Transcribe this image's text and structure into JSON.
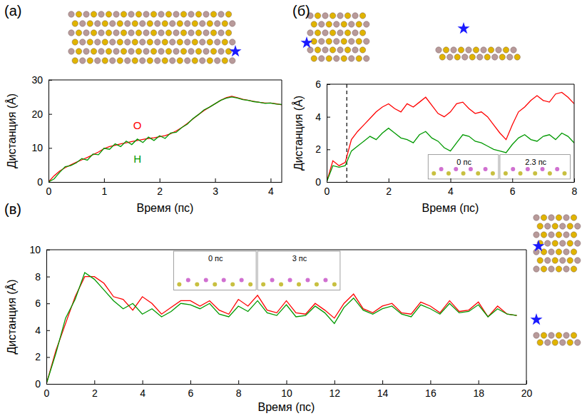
{
  "chart_data": [
    {
      "type": "line",
      "panel_label": "(а)",
      "x_label": "Время (пс)",
      "y_label": "Дистанция (Å)",
      "xlim": [
        0,
        4.2
      ],
      "xticks": [
        0,
        1,
        2,
        3,
        4
      ],
      "ylim": [
        0,
        30
      ],
      "yticks": [
        0,
        10,
        20,
        30
      ],
      "x": [
        0,
        0.1,
        0.2,
        0.3,
        0.4,
        0.5,
        0.6,
        0.7,
        0.8,
        0.9,
        1.0,
        1.1,
        1.2,
        1.3,
        1.4,
        1.5,
        1.6,
        1.7,
        1.8,
        1.9,
        2.0,
        2.1,
        2.2,
        2.3,
        2.4,
        2.5,
        2.6,
        2.7,
        2.8,
        2.9,
        3.0,
        3.1,
        3.2,
        3.3,
        3.4,
        3.5,
        3.6,
        3.7,
        3.8,
        3.9,
        4.0,
        4.1,
        4.2
      ],
      "series": [
        {
          "color": "#ff0000",
          "values": [
            0,
            1.8,
            3.2,
            4.2,
            5.0,
            5.8,
            6.5,
            7.2,
            8.0,
            8.8,
            9.8,
            10.4,
            10.8,
            11.2,
            11.5,
            11.9,
            12.2,
            12.5,
            12.8,
            13.0,
            13.3,
            13.6,
            14.2,
            15.0,
            16.0,
            17.2,
            18.5,
            19.8,
            21.0,
            22.0,
            23.0,
            24.0,
            24.8,
            25.2,
            24.8,
            24.3,
            24.0,
            23.7,
            23.4,
            23.2,
            23.2,
            23.0,
            22.7
          ]
        },
        {
          "color": "#009900",
          "values": [
            0,
            0.9,
            2.8,
            4.5,
            4.8,
            5.6,
            6.9,
            6.4,
            8.2,
            8.0,
            9.9,
            9.6,
            11.2,
            10.4,
            12.0,
            11.0,
            12.6,
            11.6,
            13.2,
            12.2,
            13.6,
            12.8,
            14.4,
            14.6,
            16.0,
            17.0,
            18.6,
            19.8,
            21.2,
            22.0,
            23.0,
            24.0,
            24.6,
            25.0,
            24.7,
            24.2,
            24.0,
            23.6,
            23.4,
            23.1,
            23.2,
            22.9,
            22.8
          ]
        }
      ],
      "annotations": [
        {
          "text": "O",
          "x": 1.6,
          "y": 16.3,
          "color": "#ff0000"
        },
        {
          "text": "H",
          "x": 1.6,
          "y": 6.5,
          "color": "#009900"
        }
      ]
    },
    {
      "type": "line",
      "panel_label": "(б)",
      "x_label": "Время (пс)",
      "y_label": "Дистанция (Å)",
      "xlim": [
        0,
        8
      ],
      "xticks": [
        0,
        2,
        4,
        6,
        8
      ],
      "ylim": [
        0,
        6
      ],
      "yticks": [
        0,
        2,
        4,
        6
      ],
      "vline": 0.65,
      "inset_labels": [
        "0 пс",
        "2.3 пс"
      ],
      "x": [
        0,
        0.2,
        0.4,
        0.6,
        0.8,
        1.0,
        1.2,
        1.4,
        1.6,
        1.8,
        2.0,
        2.2,
        2.4,
        2.6,
        2.8,
        3.0,
        3.2,
        3.4,
        3.6,
        3.8,
        4.0,
        4.2,
        4.4,
        4.6,
        4.8,
        5.0,
        5.2,
        5.4,
        5.6,
        5.8,
        6.0,
        6.2,
        6.4,
        6.6,
        6.8,
        7.0,
        7.2,
        7.4,
        7.6,
        7.8,
        8.0
      ],
      "series": [
        {
          "color": "#ff0000",
          "values": [
            0,
            1.3,
            1.0,
            1.2,
            2.6,
            3.1,
            3.5,
            3.9,
            4.3,
            4.6,
            4.8,
            4.5,
            4.3,
            4.8,
            4.6,
            4.9,
            5.2,
            4.7,
            4.2,
            4.0,
            4.3,
            4.8,
            4.9,
            4.5,
            4.2,
            4.3,
            4.0,
            3.5,
            3.0,
            2.6,
            3.5,
            4.3,
            4.6,
            5.0,
            5.3,
            5.0,
            4.9,
            5.4,
            5.5,
            5.2,
            4.8
          ]
        },
        {
          "color": "#009900",
          "values": [
            0,
            1.0,
            0.9,
            1.0,
            1.9,
            2.2,
            2.5,
            2.8,
            2.6,
            3.0,
            3.3,
            3.0,
            2.7,
            2.6,
            2.4,
            2.9,
            3.1,
            2.7,
            2.5,
            2.1,
            1.9,
            2.4,
            2.9,
            2.8,
            2.5,
            2.4,
            2.2,
            2.0,
            1.9,
            1.8,
            2.3,
            2.7,
            2.9,
            2.6,
            2.5,
            2.8,
            2.9,
            2.6,
            3.0,
            2.8,
            2.4
          ]
        }
      ]
    },
    {
      "type": "line",
      "panel_label": "(в)",
      "x_label": "Время (пс)",
      "y_label": "Дистанция (Å)",
      "xlim": [
        0,
        20
      ],
      "xticks": [
        0,
        2,
        4,
        6,
        8,
        10,
        12,
        14,
        16,
        18,
        20
      ],
      "ylim": [
        0,
        10
      ],
      "yticks": [
        0,
        2,
        4,
        6,
        8,
        10
      ],
      "inset_labels": [
        "0 пс",
        "3 пс"
      ],
      "x": [
        0,
        0.4,
        0.8,
        1.2,
        1.6,
        2.0,
        2.4,
        2.8,
        3.2,
        3.6,
        4.0,
        4.4,
        4.8,
        5.2,
        5.6,
        6.0,
        6.4,
        6.8,
        7.2,
        7.6,
        8.0,
        8.4,
        8.8,
        9.2,
        9.6,
        10.0,
        10.4,
        10.8,
        11.2,
        11.6,
        12.0,
        12.4,
        12.8,
        13.2,
        13.6,
        14.0,
        14.4,
        14.8,
        15.2,
        15.6,
        16.0,
        16.4,
        16.8,
        17.2,
        17.6,
        18.0,
        18.4,
        18.8,
        19.2,
        19.6
      ],
      "series": [
        {
          "color": "#ff0000",
          "values": [
            0,
            2.5,
            4.5,
            6.5,
            8.0,
            8.0,
            7.5,
            6.5,
            6.3,
            5.5,
            6.5,
            6.0,
            5.2,
            5.7,
            6.2,
            6.2,
            5.8,
            6.2,
            5.5,
            5.2,
            6.3,
            5.8,
            6.6,
            5.5,
            5.3,
            6.2,
            5.3,
            5.2,
            6.0,
            5.5,
            4.9,
            6.0,
            6.7,
            5.6,
            5.3,
            5.8,
            6.0,
            5.3,
            5.2,
            6.1,
            5.8,
            5.3,
            6.2,
            5.4,
            5.5,
            6.1,
            5.0,
            5.8,
            5.2,
            5.1
          ]
        },
        {
          "color": "#009900",
          "values": [
            0,
            2.3,
            4.9,
            6.3,
            8.3,
            7.8,
            7.0,
            6.2,
            5.6,
            6.0,
            5.2,
            5.6,
            5.0,
            5.4,
            6.0,
            5.9,
            5.6,
            6.0,
            5.2,
            5.0,
            5.8,
            5.4,
            6.2,
            5.3,
            5.1,
            5.9,
            5.0,
            5.1,
            5.8,
            5.3,
            4.5,
            5.7,
            6.4,
            5.5,
            5.2,
            5.6,
            5.8,
            5.2,
            5.0,
            5.9,
            5.6,
            5.2,
            6.0,
            5.3,
            5.4,
            5.9,
            5.0,
            5.6,
            5.2,
            5.1
          ]
        }
      ]
    }
  ]
}
